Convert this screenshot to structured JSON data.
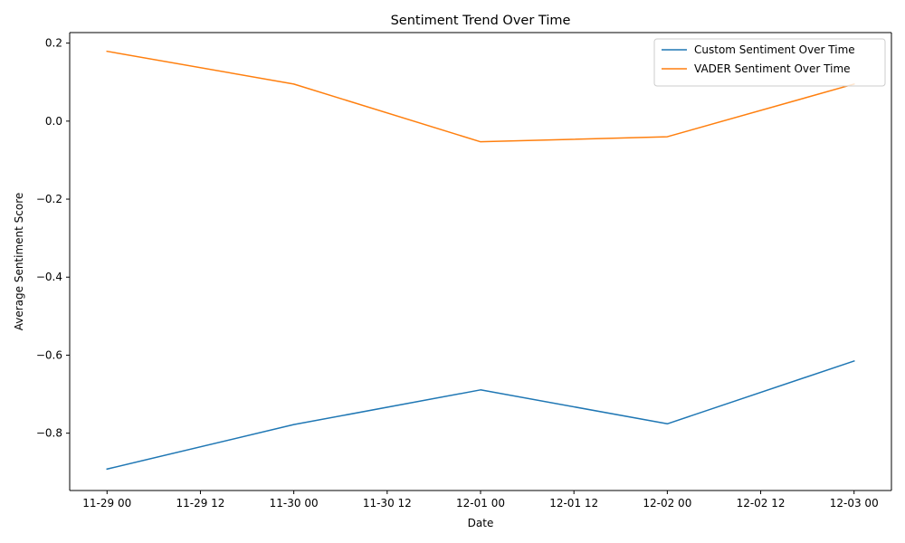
{
  "chart_data": {
    "type": "line",
    "title": "Sentiment Trend Over Time",
    "xlabel": "Date",
    "ylabel": "Average Sentiment Score",
    "x": [
      "11-29 00",
      "11-30 00",
      "12-01 00",
      "12-02 00",
      "12-03 00"
    ],
    "x_hours": [
      0,
      24,
      48,
      72,
      96
    ],
    "xticks": [
      {
        "label": "11-29 00",
        "hour": 0
      },
      {
        "label": "11-29 12",
        "hour": 12
      },
      {
        "label": "11-30 00",
        "hour": 24
      },
      {
        "label": "11-30 12",
        "hour": 36
      },
      {
        "label": "12-01 00",
        "hour": 48
      },
      {
        "label": "12-01 12",
        "hour": 60
      },
      {
        "label": "12-02 00",
        "hour": 72
      },
      {
        "label": "12-02 12",
        "hour": 84
      },
      {
        "label": "12-03 00",
        "hour": 96
      }
    ],
    "yticks": [
      0.2,
      0.0,
      -0.2,
      -0.4,
      -0.6,
      -0.8
    ],
    "ytick_labels": [
      "0.2",
      "0.0",
      "−0.2",
      "−0.4",
      "−0.6",
      "−0.8"
    ],
    "ylim": [
      -0.947,
      0.227
    ],
    "xlim_hours": [
      -4.8,
      100.8
    ],
    "grid": false,
    "legend_position": "top-right",
    "series": [
      {
        "name": "Custom Sentiment Over Time",
        "color": "#1f77b4",
        "values": [
          -0.892,
          -0.778,
          -0.689,
          -0.776,
          -0.615
        ]
      },
      {
        "name": "VADER Sentiment Over Time",
        "color": "#ff7f0e",
        "values": [
          0.179,
          0.095,
          -0.053,
          -0.04,
          0.095
        ]
      }
    ]
  }
}
